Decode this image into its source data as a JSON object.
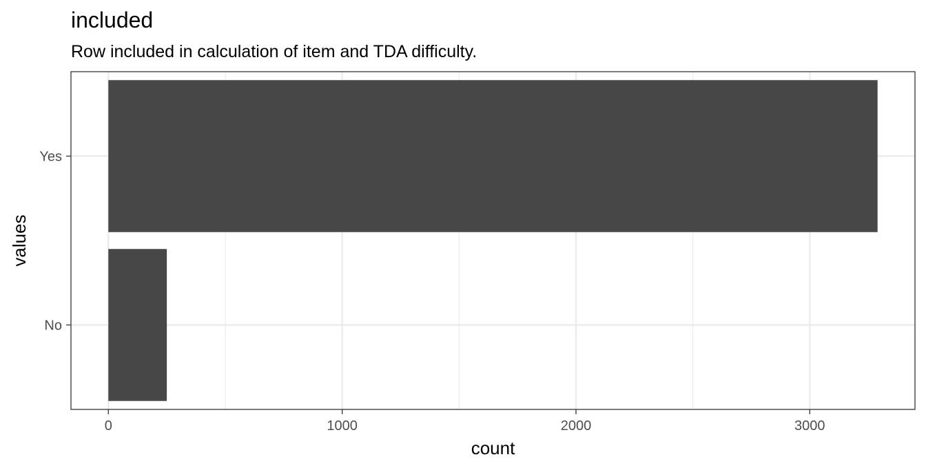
{
  "chart_data": {
    "type": "bar",
    "orientation": "horizontal",
    "title": "included",
    "subtitle": "Row included in calculation of item and TDA difficulty.",
    "xlabel": "count",
    "ylabel": "values",
    "categories": [
      "No",
      "Yes"
    ],
    "values": [
      250,
      3290
    ],
    "xlim": [
      -160,
      3450
    ],
    "x_ticks": [
      0,
      1000,
      2000,
      3000
    ],
    "x_tick_labels": [
      "0",
      "1000",
      "2000",
      "3000"
    ],
    "x_minor_ticks": [
      500,
      1500,
      2500
    ],
    "grid": true,
    "legend": "none",
    "bar_color": "#474747",
    "grid_color": "#ebebeb",
    "panel_border_color": "#333333"
  }
}
